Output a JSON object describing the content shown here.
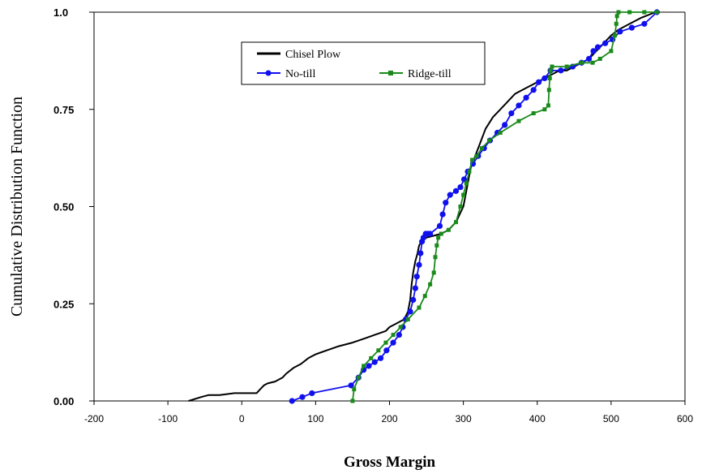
{
  "chart_data": {
    "type": "line",
    "title": "",
    "xlabel": "Gross Margin",
    "ylabel": "Cumulative Distribution Function",
    "xlim": [
      -200,
      600
    ],
    "ylim": [
      0,
      1
    ],
    "x_ticks": [
      -200,
      -100,
      0,
      100,
      200,
      300,
      400,
      500,
      600
    ],
    "x_tick_labels": [
      "-200",
      "-100",
      "0",
      "100",
      "200",
      "300",
      "400",
      "500",
      "600"
    ],
    "y_ticks": [
      0,
      0.25,
      0.5,
      0.75,
      1.0
    ],
    "y_tick_labels": [
      "0.00",
      "0.25",
      "0.50",
      "0.75",
      "1.0"
    ],
    "grid": false,
    "legend_position": "top-center",
    "series": [
      {
        "name": "Chisel Plow",
        "color": "#000000",
        "marker": "none",
        "x": [
          -72,
          -55,
          -45,
          -30,
          -10,
          0,
          10,
          20,
          25,
          30,
          35,
          45,
          55,
          60,
          70,
          80,
          90,
          100,
          115,
          130,
          150,
          165,
          180,
          195,
          200,
          210,
          220,
          225,
          228,
          230,
          232,
          235,
          238,
          240,
          245,
          250,
          260,
          270,
          280,
          290,
          300,
          305,
          310,
          320,
          330,
          340,
          350,
          360,
          370,
          380,
          390,
          400,
          410,
          420,
          430,
          440,
          450,
          460,
          470,
          480,
          490,
          500,
          510,
          520,
          540,
          560
        ],
        "y": [
          0.0,
          0.01,
          0.015,
          0.015,
          0.02,
          0.02,
          0.02,
          0.02,
          0.03,
          0.04,
          0.045,
          0.05,
          0.06,
          0.07,
          0.085,
          0.095,
          0.11,
          0.12,
          0.13,
          0.14,
          0.15,
          0.16,
          0.17,
          0.18,
          0.19,
          0.2,
          0.21,
          0.23,
          0.26,
          0.3,
          0.33,
          0.36,
          0.38,
          0.4,
          0.415,
          0.42,
          0.425,
          0.43,
          0.44,
          0.46,
          0.5,
          0.55,
          0.6,
          0.65,
          0.7,
          0.73,
          0.75,
          0.77,
          0.79,
          0.8,
          0.81,
          0.82,
          0.83,
          0.84,
          0.85,
          0.85,
          0.86,
          0.87,
          0.88,
          0.9,
          0.92,
          0.94,
          0.955,
          0.965,
          0.985,
          1.0
        ]
      },
      {
        "name": "No-till",
        "color": "#1010ee",
        "marker": "circle",
        "x": [
          68,
          82,
          95,
          148,
          158,
          165,
          172,
          180,
          188,
          196,
          205,
          213,
          218,
          222,
          228,
          232,
          235,
          237,
          240,
          242,
          244,
          246,
          249,
          252,
          255,
          268,
          272,
          276,
          282,
          290,
          296,
          301,
          306,
          313,
          320,
          328,
          336,
          346,
          356,
          365,
          375,
          385,
          395,
          402,
          410,
          418,
          432,
          448,
          460,
          470,
          476,
          482,
          492,
          502,
          512,
          528,
          545,
          562
        ],
        "y": [
          0.0,
          0.01,
          0.02,
          0.04,
          0.06,
          0.08,
          0.09,
          0.1,
          0.11,
          0.13,
          0.15,
          0.17,
          0.19,
          0.21,
          0.23,
          0.26,
          0.29,
          0.32,
          0.35,
          0.38,
          0.41,
          0.42,
          0.43,
          0.43,
          0.43,
          0.45,
          0.48,
          0.51,
          0.53,
          0.54,
          0.55,
          0.57,
          0.59,
          0.61,
          0.63,
          0.65,
          0.67,
          0.69,
          0.71,
          0.74,
          0.76,
          0.78,
          0.8,
          0.82,
          0.83,
          0.85,
          0.85,
          0.86,
          0.87,
          0.88,
          0.9,
          0.91,
          0.92,
          0.93,
          0.95,
          0.96,
          0.97,
          1.0
        ]
      },
      {
        "name": "Ridge-till",
        "color": "#1a8a1a",
        "marker": "square",
        "x": [
          150,
          152,
          158,
          165,
          175,
          185,
          195,
          205,
          215,
          225,
          240,
          248,
          255,
          260,
          262,
          264,
          266,
          270,
          280,
          290,
          296,
          300,
          304,
          308,
          312,
          318,
          325,
          335,
          350,
          375,
          395,
          410,
          415,
          416,
          417,
          418,
          420,
          440,
          460,
          475,
          485,
          500,
          505,
          507,
          508,
          510,
          525,
          545,
          562
        ],
        "y": [
          0.0,
          0.03,
          0.06,
          0.09,
          0.11,
          0.13,
          0.15,
          0.17,
          0.19,
          0.21,
          0.24,
          0.27,
          0.3,
          0.33,
          0.37,
          0.4,
          0.42,
          0.43,
          0.44,
          0.46,
          0.5,
          0.53,
          0.56,
          0.59,
          0.62,
          0.63,
          0.65,
          0.67,
          0.69,
          0.72,
          0.74,
          0.75,
          0.76,
          0.8,
          0.83,
          0.85,
          0.86,
          0.86,
          0.87,
          0.87,
          0.88,
          0.9,
          0.94,
          0.97,
          0.99,
          1.0,
          1.0,
          1.0,
          1.0
        ]
      }
    ]
  }
}
